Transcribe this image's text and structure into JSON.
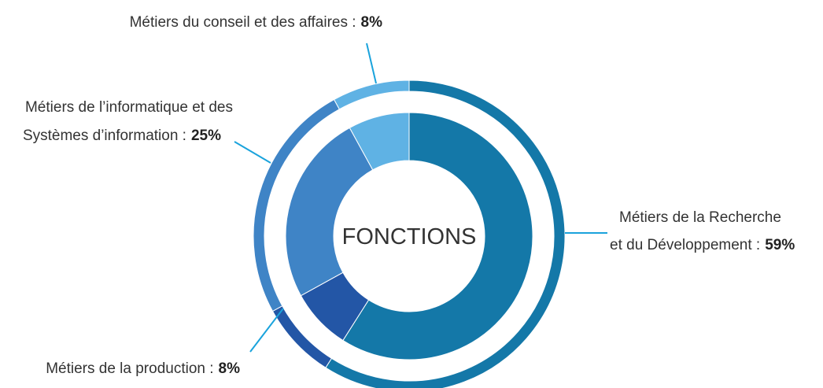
{
  "chart_data": {
    "type": "donut",
    "center_label": "FONCTIONS",
    "categories": [
      [
        "Métiers de la Recherche",
        "et du Développement :"
      ],
      [
        "Métiers de la production :"
      ],
      [
        "Métiers de l’informatique et des",
        "Systèmes d’information :"
      ],
      [
        "Métiers du conseil et des affaires :"
      ]
    ],
    "values": [
      59,
      8,
      25,
      8
    ],
    "value_labels": [
      "59%",
      "8%",
      "25%",
      "8%"
    ],
    "colors": [
      "#1478a8",
      "#2356a6",
      "#3f84c6",
      "#5fb2e4"
    ],
    "leader_color": "#1aa3dc"
  }
}
